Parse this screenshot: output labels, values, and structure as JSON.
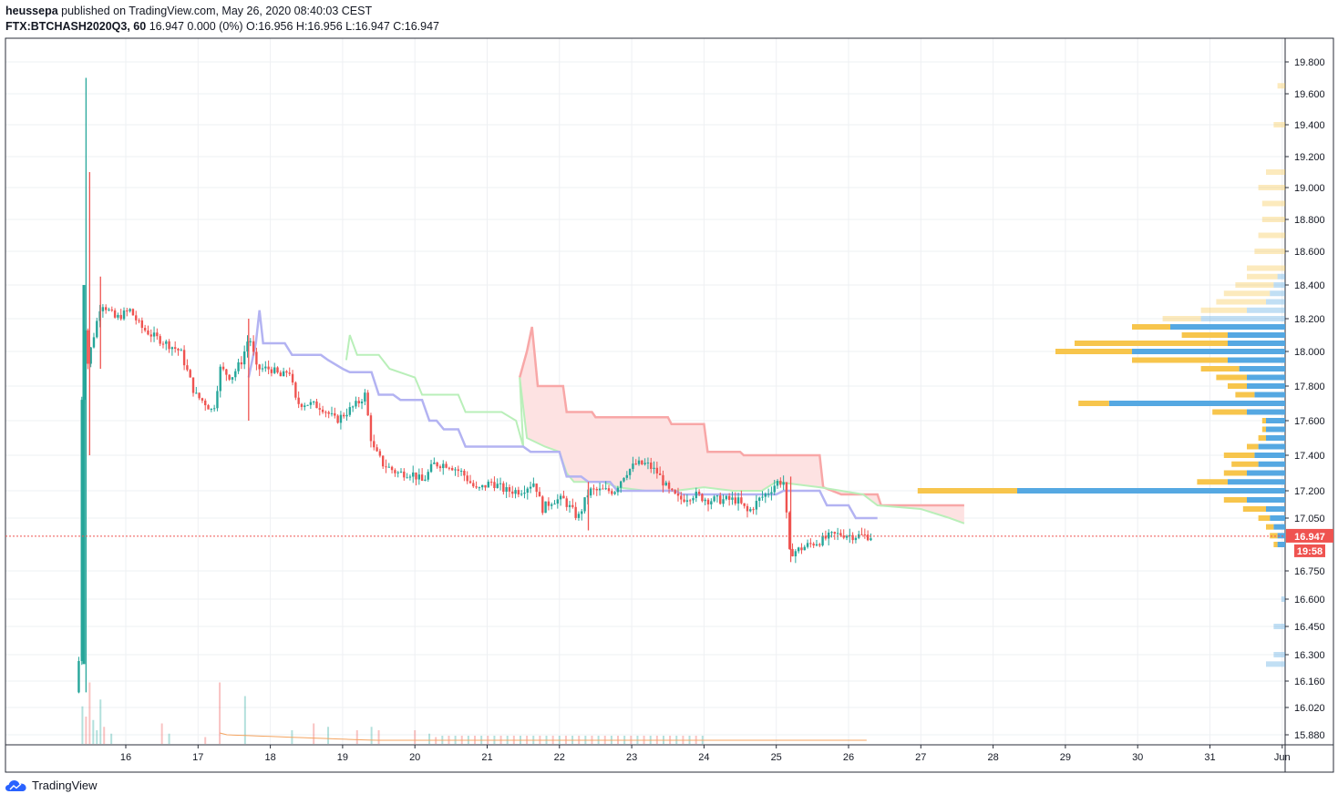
{
  "header": {
    "publisher": "heussepa",
    "published_text": "published on TradingView.com, May 26, 2020 08:40:03 CEST",
    "symbol": "FTX:BTCHASH2020Q3, 60",
    "quote": "16.947 0.000 (0%) O:16.956 H:16.956 L:16.947 C:16.947"
  },
  "brand": {
    "name": "TradingView"
  },
  "colors": {
    "up": "#26a69a",
    "down": "#ef5350",
    "cloud_red": "#f8a7a7",
    "cloud_green": "#b9efb9",
    "blue_line": "#b3b3f2",
    "vp_blue": "#4ca3e0",
    "vp_yellow": "#f7c242",
    "price_label": "#ef5350",
    "grid": "#eef0f3"
  },
  "chart_data": {
    "type": "candlestick",
    "price_label": "16.947",
    "countdown_label": "19:58",
    "last_price": 16.947,
    "y_ticks": [
      {
        "label": "19.800",
        "v": 19.8
      },
      {
        "label": "19.600",
        "v": 19.6
      },
      {
        "label": "19.400",
        "v": 19.4
      },
      {
        "label": "19.200",
        "v": 19.2
      },
      {
        "label": "19.000",
        "v": 19.0
      },
      {
        "label": "18.800",
        "v": 18.8
      },
      {
        "label": "18.600",
        "v": 18.6
      },
      {
        "label": "18.400",
        "v": 18.4
      },
      {
        "label": "18.200",
        "v": 18.2
      },
      {
        "label": "18.000",
        "v": 18.0
      },
      {
        "label": "17.800",
        "v": 17.8
      },
      {
        "label": "17.600",
        "v": 17.6
      },
      {
        "label": "17.400",
        "v": 17.4
      },
      {
        "label": "17.200",
        "v": 17.2
      },
      {
        "label": "17.050",
        "v": 17.05
      },
      {
        "label": "16.750",
        "v": 16.75
      },
      {
        "label": "16.600",
        "v": 16.6
      },
      {
        "label": "16.450",
        "v": 16.45
      },
      {
        "label": "16.300",
        "v": 16.3
      },
      {
        "label": "16.160",
        "v": 16.16
      },
      {
        "label": "16.020",
        "v": 16.02
      },
      {
        "label": "15.880",
        "v": 15.88
      }
    ],
    "x_ticks": [
      {
        "label": "16",
        "day": 16
      },
      {
        "label": "17",
        "day": 17
      },
      {
        "label": "18",
        "day": 18
      },
      {
        "label": "19",
        "day": 19
      },
      {
        "label": "20",
        "day": 20
      },
      {
        "label": "21",
        "day": 21
      },
      {
        "label": "22",
        "day": 22
      },
      {
        "label": "23",
        "day": 23
      },
      {
        "label": "24",
        "day": 24
      },
      {
        "label": "25",
        "day": 25
      },
      {
        "label": "26",
        "day": 26
      },
      {
        "label": "27",
        "day": 27
      },
      {
        "label": "28",
        "day": 28
      },
      {
        "label": "29",
        "day": 29
      },
      {
        "label": "30",
        "day": 30
      },
      {
        "label": "31",
        "day": 31
      },
      {
        "label": "Jun",
        "day": 32
      }
    ],
    "price_path": [
      [
        15.35,
        16.1
      ],
      [
        15.4,
        16.3
      ],
      [
        15.42,
        17.2
      ],
      [
        15.45,
        18.4
      ],
      [
        15.5,
        17.9
      ],
      [
        15.6,
        18.1
      ],
      [
        15.7,
        18.3
      ],
      [
        15.9,
        18.2
      ],
      [
        16.1,
        18.25
      ],
      [
        16.25,
        18.15
      ],
      [
        16.4,
        18.1
      ],
      [
        16.6,
        18.05
      ],
      [
        16.8,
        18.0
      ],
      [
        17.0,
        17.75
      ],
      [
        17.15,
        17.7
      ],
      [
        17.25,
        17.65
      ],
      [
        17.35,
        17.9
      ],
      [
        17.5,
        17.85
      ],
      [
        17.65,
        17.95
      ],
      [
        17.75,
        18.1
      ],
      [
        17.85,
        17.9
      ],
      [
        18.05,
        17.9
      ],
      [
        18.2,
        17.85
      ],
      [
        18.3,
        17.9
      ],
      [
        18.4,
        17.7
      ],
      [
        18.55,
        17.7
      ],
      [
        18.75,
        17.68
      ],
      [
        18.95,
        17.6
      ],
      [
        19.1,
        17.65
      ],
      [
        19.25,
        17.7
      ],
      [
        19.35,
        17.75
      ],
      [
        19.45,
        17.45
      ],
      [
        19.6,
        17.35
      ],
      [
        19.8,
        17.3
      ],
      [
        20.0,
        17.3
      ],
      [
        20.15,
        17.25
      ],
      [
        20.3,
        17.35
      ],
      [
        20.5,
        17.35
      ],
      [
        20.7,
        17.3
      ],
      [
        20.9,
        17.2
      ],
      [
        21.1,
        17.25
      ],
      [
        21.3,
        17.2
      ],
      [
        21.5,
        17.2
      ],
      [
        21.7,
        17.25
      ],
      [
        21.8,
        17.1
      ],
      [
        21.95,
        17.15
      ],
      [
        22.1,
        17.15
      ],
      [
        22.3,
        17.05
      ],
      [
        22.45,
        17.2
      ],
      [
        22.6,
        17.2
      ],
      [
        22.8,
        17.2
      ],
      [
        22.95,
        17.3
      ],
      [
        23.1,
        17.35
      ],
      [
        23.25,
        17.35
      ],
      [
        23.4,
        17.3
      ],
      [
        23.55,
        17.2
      ],
      [
        23.7,
        17.15
      ],
      [
        23.9,
        17.18
      ],
      [
        24.1,
        17.15
      ],
      [
        24.3,
        17.15
      ],
      [
        24.5,
        17.15
      ],
      [
        24.65,
        17.08
      ],
      [
        24.8,
        17.15
      ],
      [
        24.95,
        17.2
      ],
      [
        25.05,
        17.25
      ],
      [
        25.15,
        17.25
      ],
      [
        25.22,
        16.85
      ],
      [
        25.35,
        16.87
      ],
      [
        25.5,
        16.9
      ],
      [
        25.65,
        16.92
      ],
      [
        25.8,
        16.95
      ],
      [
        25.95,
        16.96
      ],
      [
        26.1,
        16.95
      ],
      [
        26.25,
        16.95
      ],
      [
        26.35,
        16.947
      ]
    ],
    "spikes": [
      {
        "day": 15.45,
        "high": 19.7,
        "low": 16.1
      },
      {
        "day": 15.5,
        "high": 19.1,
        "low": 17.4
      },
      {
        "day": 15.65,
        "high": 18.45,
        "low": 17.9
      },
      {
        "day": 17.7,
        "high": 18.2,
        "low": 17.6
      },
      {
        "day": 22.4,
        "high": 17.25,
        "low": 16.98
      },
      {
        "day": 25.2,
        "high": 17.28,
        "low": 16.8
      }
    ],
    "cloud_upper": [
      [
        21.45,
        17.85
      ],
      [
        21.55,
        18.0
      ],
      [
        21.62,
        18.15
      ],
      [
        21.7,
        17.8
      ],
      [
        22.05,
        17.8
      ],
      [
        22.1,
        17.65
      ],
      [
        22.45,
        17.65
      ],
      [
        22.5,
        17.62
      ],
      [
        23.5,
        17.62
      ],
      [
        23.55,
        17.58
      ],
      [
        24.0,
        17.58
      ],
      [
        24.05,
        17.42
      ],
      [
        24.5,
        17.42
      ],
      [
        24.55,
        17.4
      ],
      [
        25.6,
        17.4
      ],
      [
        25.65,
        17.22
      ],
      [
        25.9,
        17.18
      ],
      [
        26.4,
        17.18
      ],
      [
        26.45,
        17.12
      ],
      [
        27.6,
        17.12
      ]
    ],
    "cloud_lower": [
      [
        21.45,
        17.85
      ],
      [
        21.55,
        17.5
      ],
      [
        21.8,
        17.45
      ],
      [
        22.0,
        17.42
      ],
      [
        22.1,
        17.3
      ],
      [
        22.2,
        17.25
      ],
      [
        22.6,
        17.25
      ],
      [
        22.8,
        17.22
      ],
      [
        23.2,
        17.2
      ],
      [
        23.6,
        17.2
      ],
      [
        24.0,
        17.22
      ],
      [
        24.4,
        17.2
      ],
      [
        24.8,
        17.2
      ],
      [
        25.0,
        17.25
      ],
      [
        25.6,
        17.22
      ],
      [
        25.9,
        17.2
      ],
      [
        26.2,
        17.18
      ],
      [
        26.4,
        17.12
      ],
      [
        27.0,
        17.1
      ],
      [
        27.4,
        17.05
      ],
      [
        27.6,
        17.02
      ]
    ],
    "lagging_green": [
      [
        19.05,
        17.95
      ],
      [
        19.1,
        18.1
      ],
      [
        19.2,
        17.98
      ],
      [
        19.5,
        17.98
      ],
      [
        19.65,
        17.9
      ],
      [
        20.0,
        17.85
      ],
      [
        20.1,
        17.75
      ],
      [
        20.6,
        17.75
      ],
      [
        20.7,
        17.65
      ],
      [
        21.2,
        17.65
      ],
      [
        21.4,
        17.6
      ],
      [
        21.5,
        17.45
      ],
      [
        21.45,
        17.85
      ]
    ],
    "blue_line": [
      [
        17.7,
        17.85
      ],
      [
        17.8,
        18.05
      ],
      [
        17.85,
        18.25
      ],
      [
        17.9,
        18.05
      ],
      [
        18.2,
        18.05
      ],
      [
        18.3,
        17.98
      ],
      [
        18.7,
        17.98
      ],
      [
        18.8,
        17.95
      ],
      [
        19.0,
        17.9
      ],
      [
        19.1,
        17.88
      ],
      [
        19.4,
        17.88
      ],
      [
        19.5,
        17.75
      ],
      [
        19.7,
        17.75
      ],
      [
        19.8,
        17.72
      ],
      [
        20.1,
        17.72
      ],
      [
        20.2,
        17.6
      ],
      [
        20.3,
        17.6
      ],
      [
        20.4,
        17.55
      ],
      [
        20.6,
        17.55
      ],
      [
        20.7,
        17.45
      ],
      [
        21.5,
        17.45
      ],
      [
        21.6,
        17.42
      ],
      [
        22.0,
        17.42
      ],
      [
        22.1,
        17.28
      ],
      [
        22.3,
        17.28
      ],
      [
        22.4,
        17.25
      ],
      [
        22.7,
        17.25
      ],
      [
        22.8,
        17.2
      ],
      [
        23.6,
        17.2
      ],
      [
        23.7,
        17.18
      ],
      [
        25.0,
        17.18
      ],
      [
        25.1,
        17.2
      ],
      [
        25.6,
        17.2
      ],
      [
        25.7,
        17.12
      ],
      [
        26.0,
        17.12
      ],
      [
        26.1,
        17.05
      ],
      [
        26.4,
        17.05
      ]
    ],
    "volume_profile": [
      {
        "p": 19.65,
        "blue": 0,
        "yellow": 0.02
      },
      {
        "p": 19.4,
        "blue": 0,
        "yellow": 0.03
      },
      {
        "p": 19.1,
        "blue": 0,
        "yellow": 0.05
      },
      {
        "p": 19.0,
        "blue": 0,
        "yellow": 0.07
      },
      {
        "p": 18.9,
        "blue": 0,
        "yellow": 0.06
      },
      {
        "p": 18.8,
        "blue": 0,
        "yellow": 0.06
      },
      {
        "p": 18.7,
        "blue": 0,
        "yellow": 0.07
      },
      {
        "p": 18.6,
        "blue": 0,
        "yellow": 0.08
      },
      {
        "p": 18.5,
        "blue": 0,
        "yellow": 0.1
      },
      {
        "p": 18.45,
        "blue": 0.02,
        "yellow": 0.08
      },
      {
        "p": 18.4,
        "blue": 0.03,
        "yellow": 0.1
      },
      {
        "p": 18.35,
        "blue": 0.04,
        "yellow": 0.12
      },
      {
        "p": 18.3,
        "blue": 0.05,
        "yellow": 0.13
      },
      {
        "p": 18.25,
        "blue": 0.1,
        "yellow": 0.12
      },
      {
        "p": 18.2,
        "blue": 0.22,
        "yellow": 0.1
      },
      {
        "p": 18.15,
        "blue": 0.3,
        "yellow": 0.1
      },
      {
        "p": 18.1,
        "blue": 0.15,
        "yellow": 0.12
      },
      {
        "p": 18.05,
        "blue": 0.15,
        "yellow": 0.4
      },
      {
        "p": 18.0,
        "blue": 0.4,
        "yellow": 0.2
      },
      {
        "p": 17.95,
        "blue": 0.15,
        "yellow": 0.25
      },
      {
        "p": 17.9,
        "blue": 0.12,
        "yellow": 0.1
      },
      {
        "p": 17.85,
        "blue": 0.1,
        "yellow": 0.08
      },
      {
        "p": 17.8,
        "blue": 0.1,
        "yellow": 0.05
      },
      {
        "p": 17.75,
        "blue": 0.08,
        "yellow": 0.05
      },
      {
        "p": 17.7,
        "blue": 0.46,
        "yellow": 0.08
      },
      {
        "p": 17.65,
        "blue": 0.1,
        "yellow": 0.09
      },
      {
        "p": 17.6,
        "blue": 0.05,
        "yellow": 0.01
      },
      {
        "p": 17.55,
        "blue": 0.05,
        "yellow": 0.01
      },
      {
        "p": 17.5,
        "blue": 0.05,
        "yellow": 0.02
      },
      {
        "p": 17.45,
        "blue": 0.07,
        "yellow": 0.03
      },
      {
        "p": 17.4,
        "blue": 0.08,
        "yellow": 0.08
      },
      {
        "p": 17.35,
        "blue": 0.07,
        "yellow": 0.07
      },
      {
        "p": 17.3,
        "blue": 0.1,
        "yellow": 0.06
      },
      {
        "p": 17.25,
        "blue": 0.15,
        "yellow": 0.08
      },
      {
        "p": 17.2,
        "blue": 0.7,
        "yellow": 0.26
      },
      {
        "p": 17.15,
        "blue": 0.1,
        "yellow": 0.06
      },
      {
        "p": 17.1,
        "blue": 0.05,
        "yellow": 0.06
      },
      {
        "p": 17.05,
        "blue": 0.04,
        "yellow": 0.03
      },
      {
        "p": 17.0,
        "blue": 0.03,
        "yellow": 0.02
      },
      {
        "p": 16.95,
        "blue": 0.02,
        "yellow": 0.02
      },
      {
        "p": 16.9,
        "blue": 0.02,
        "yellow": 0.01
      },
      {
        "p": 16.6,
        "blue": 0.01,
        "yellow": 0
      },
      {
        "p": 16.45,
        "blue": 0.03,
        "yellow": 0
      },
      {
        "p": 16.3,
        "blue": 0.03,
        "yellow": 0
      },
      {
        "p": 16.25,
        "blue": 0.05,
        "yellow": 0
      }
    ],
    "volume_bars": [
      {
        "day": 15.4,
        "v": 0.55,
        "up": true
      },
      {
        "day": 15.45,
        "v": 0.4,
        "up": false
      },
      {
        "day": 15.5,
        "v": 0.9,
        "up": false
      },
      {
        "day": 15.55,
        "v": 0.35,
        "up": true
      },
      {
        "day": 15.6,
        "v": 0.2,
        "up": true
      },
      {
        "day": 15.65,
        "v": 0.65,
        "up": true
      },
      {
        "day": 15.7,
        "v": 0.25,
        "up": false
      },
      {
        "day": 15.8,
        "v": 0.15,
        "up": true
      },
      {
        "day": 16.5,
        "v": 0.3,
        "up": false
      },
      {
        "day": 16.6,
        "v": 0.15,
        "up": true
      },
      {
        "day": 17.1,
        "v": 0.1,
        "up": false
      },
      {
        "day": 17.3,
        "v": 0.9,
        "up": false
      },
      {
        "day": 17.65,
        "v": 0.7,
        "up": true
      },
      {
        "day": 18.3,
        "v": 0.2,
        "up": true
      },
      {
        "day": 18.6,
        "v": 0.3,
        "up": false
      },
      {
        "day": 18.8,
        "v": 0.25,
        "up": true
      },
      {
        "day": 19.2,
        "v": 0.2,
        "up": false
      },
      {
        "day": 19.4,
        "v": 0.25,
        "up": true
      },
      {
        "day": 19.5,
        "v": 0.2,
        "up": false
      },
      {
        "day": 20.0,
        "v": 0.2,
        "up": false
      },
      {
        "day": 20.2,
        "v": 0.15,
        "up": true
      },
      {
        "day": 20.2,
        "v": 0.1,
        "up": false
      },
      {
        "day": 20.2,
        "v": 0.12,
        "up": true
      },
      {
        "day": 20.2,
        "v": 0.12,
        "up": false
      },
      {
        "day": 20.2,
        "v": 0.12,
        "up": true
      },
      {
        "day": 20.2,
        "v": 0.12,
        "up": false
      },
      {
        "day": 20.2,
        "v": 0.12,
        "up": true
      },
      {
        "day": 20.2,
        "v": 0.12,
        "up": false
      },
      {
        "day": 20.2,
        "v": 0.12,
        "up": true
      },
      {
        "day": 20.2,
        "v": 0.12,
        "up": false
      },
      {
        "day": 20.2,
        "v": 0.12,
        "up": true
      },
      {
        "day": 20.2,
        "v": 0.12,
        "up": false
      },
      {
        "day": 20.2,
        "v": 0.12,
        "up": true
      },
      {
        "day": 20.2,
        "v": 0.12,
        "up": false
      },
      {
        "day": 20.2,
        "v": 0.12,
        "up": true
      },
      {
        "day": 20.2,
        "v": 0.12,
        "up": false
      },
      {
        "day": 20.2,
        "v": 0.12,
        "up": true
      },
      {
        "day": 20.2,
        "v": 0.12,
        "up": false
      },
      {
        "day": 20.2,
        "v": 0.12,
        "up": true
      },
      {
        "day": 20.2,
        "v": 0.12,
        "up": false
      },
      {
        "day": 20.2,
        "v": 0.12,
        "up": true
      },
      {
        "day": 20.2,
        "v": 0.12,
        "up": false
      },
      {
        "day": 20.2,
        "v": 0.12,
        "up": true
      },
      {
        "day": 20.2,
        "v": 0.12,
        "up": false
      },
      {
        "day": 20.2,
        "v": 0.12,
        "up": true
      },
      {
        "day": 20.2,
        "v": 0.12,
        "up": false
      },
      {
        "day": 20.2,
        "v": 0.12,
        "up": true
      },
      {
        "day": 20.2,
        "v": 0.12,
        "up": false
      },
      {
        "day": 20.2,
        "v": 0.12,
        "up": true
      },
      {
        "day": 20.2,
        "v": 0.12,
        "up": false
      },
      {
        "day": 20.2,
        "v": 0.12,
        "up": true
      },
      {
        "day": 20.2,
        "v": 0.12,
        "up": false
      },
      {
        "day": 20.2,
        "v": 0.12,
        "up": true
      },
      {
        "day": 20.2,
        "v": 0.12,
        "up": false
      },
      {
        "day": 20.2,
        "v": 0.12,
        "up": true
      },
      {
        "day": 20.2,
        "v": 0.12,
        "up": false
      },
      {
        "day": 20.2,
        "v": 0.12,
        "up": true
      },
      {
        "day": 20.2,
        "v": 0.12,
        "up": false
      },
      {
        "day": 20.2,
        "v": 0.12,
        "up": true
      },
      {
        "day": 20.2,
        "v": 0.12,
        "up": false
      },
      {
        "day": 20.2,
        "v": 0.12,
        "up": true
      },
      {
        "day": 20.2,
        "v": 0.12,
        "up": false
      },
      {
        "day": 20.2,
        "v": 0.12,
        "up": true
      }
    ]
  }
}
